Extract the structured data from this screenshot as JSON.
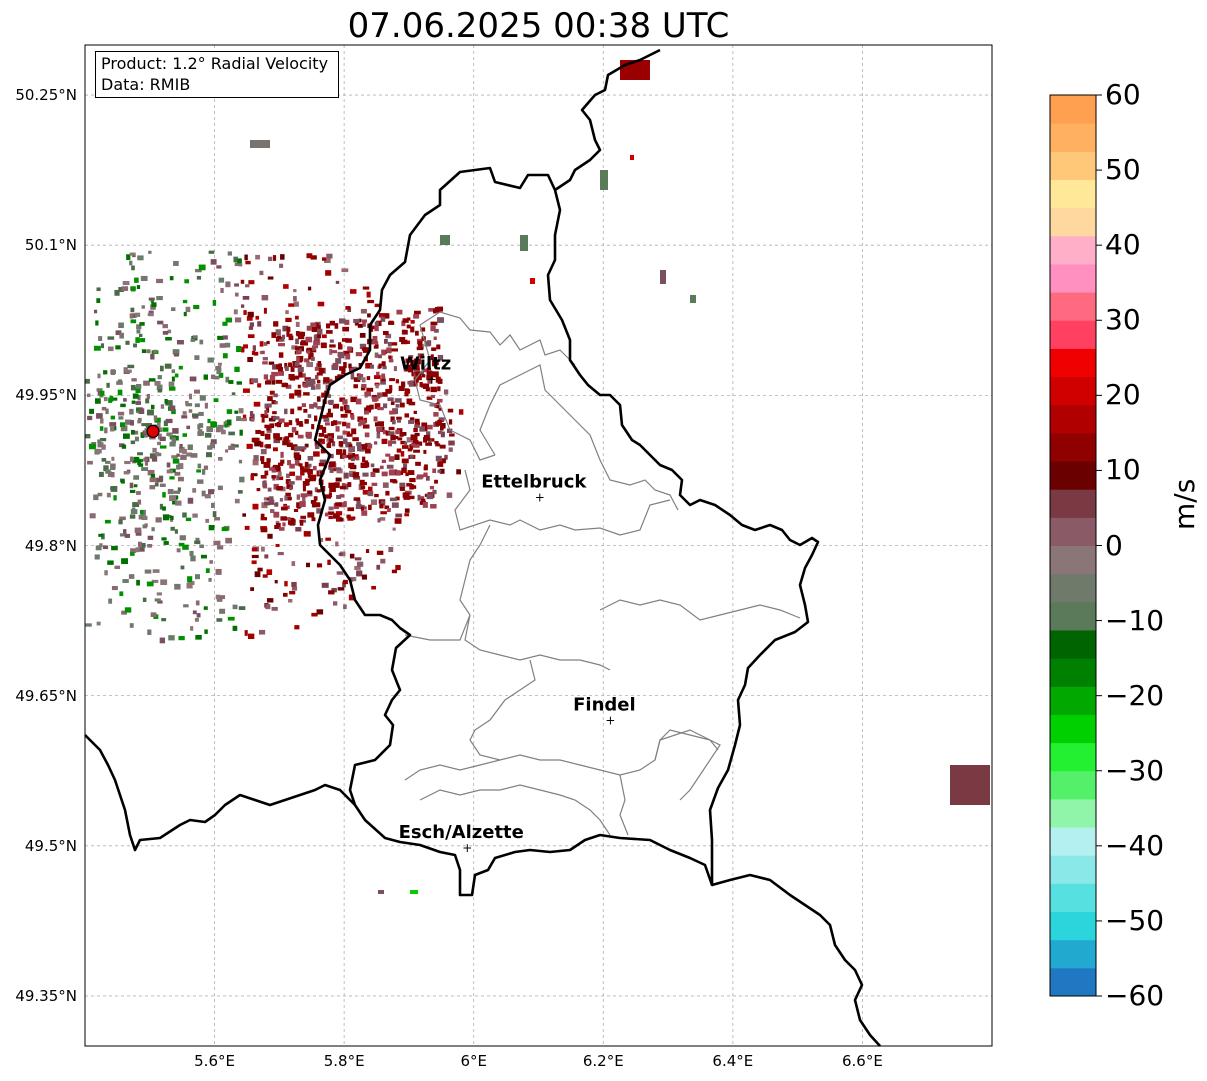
{
  "header": {
    "title": "07.06.2025 00:38 UTC"
  },
  "info_box": {
    "product": "Product: 1.2° Radial Velocity",
    "source": "Data: RMIB"
  },
  "axes": {
    "lat_labels": [
      "50.25°N",
      "50.1°N",
      "49.95°N",
      "49.8°N",
      "49.65°N",
      "49.5°N",
      "49.35°N"
    ],
    "lon_labels": [
      "5.6°E",
      "5.8°E",
      "6°E",
      "6.2°E",
      "6.4°E",
      "6.6°E"
    ],
    "lon_range": [
      5.4,
      6.8
    ],
    "lat_range": [
      49.3,
      50.3
    ],
    "gridlines": true
  },
  "cities": [
    {
      "name": "Wiltz",
      "lon": 5.935,
      "lat": 49.966
    },
    {
      "name": "Ettelbruck",
      "lon": 6.102,
      "lat": 49.848
    },
    {
      "name": "Findel",
      "lon": 6.211,
      "lat": 49.625
    },
    {
      "name": "Esch/Alzette",
      "lon": 5.99,
      "lat": 49.498
    }
  ],
  "radar_site": {
    "lon": 5.505,
    "lat": 49.914,
    "color": "#e00000"
  },
  "colorbar": {
    "unit": "m/s",
    "min": -60,
    "max": 60,
    "ticks": [
      "60",
      "50",
      "40",
      "30",
      "20",
      "10",
      "0",
      "−10",
      "−20",
      "−30",
      "−40",
      "−50",
      "−60"
    ],
    "colors": [
      "#1f78c1",
      "#22a9d0",
      "#2ad6dc",
      "#56e0e0",
      "#8ae8e8",
      "#b5f0f0",
      "#90f5a8",
      "#55f06a",
      "#22f030",
      "#00d000",
      "#00a800",
      "#008000",
      "#006400",
      "#5a7a5a",
      "#707a6a",
      "#8a7676",
      "#8a5a66",
      "#7a3a44",
      "#6a0000",
      "#900000",
      "#b00000",
      "#d00000",
      "#f00000",
      "#ff4060",
      "#ff6a80",
      "#ff90c0",
      "#ffb0c8",
      "#ffd8a0",
      "#ffe898",
      "#ffc878",
      "#ffb060",
      "#ffa050"
    ]
  }
}
